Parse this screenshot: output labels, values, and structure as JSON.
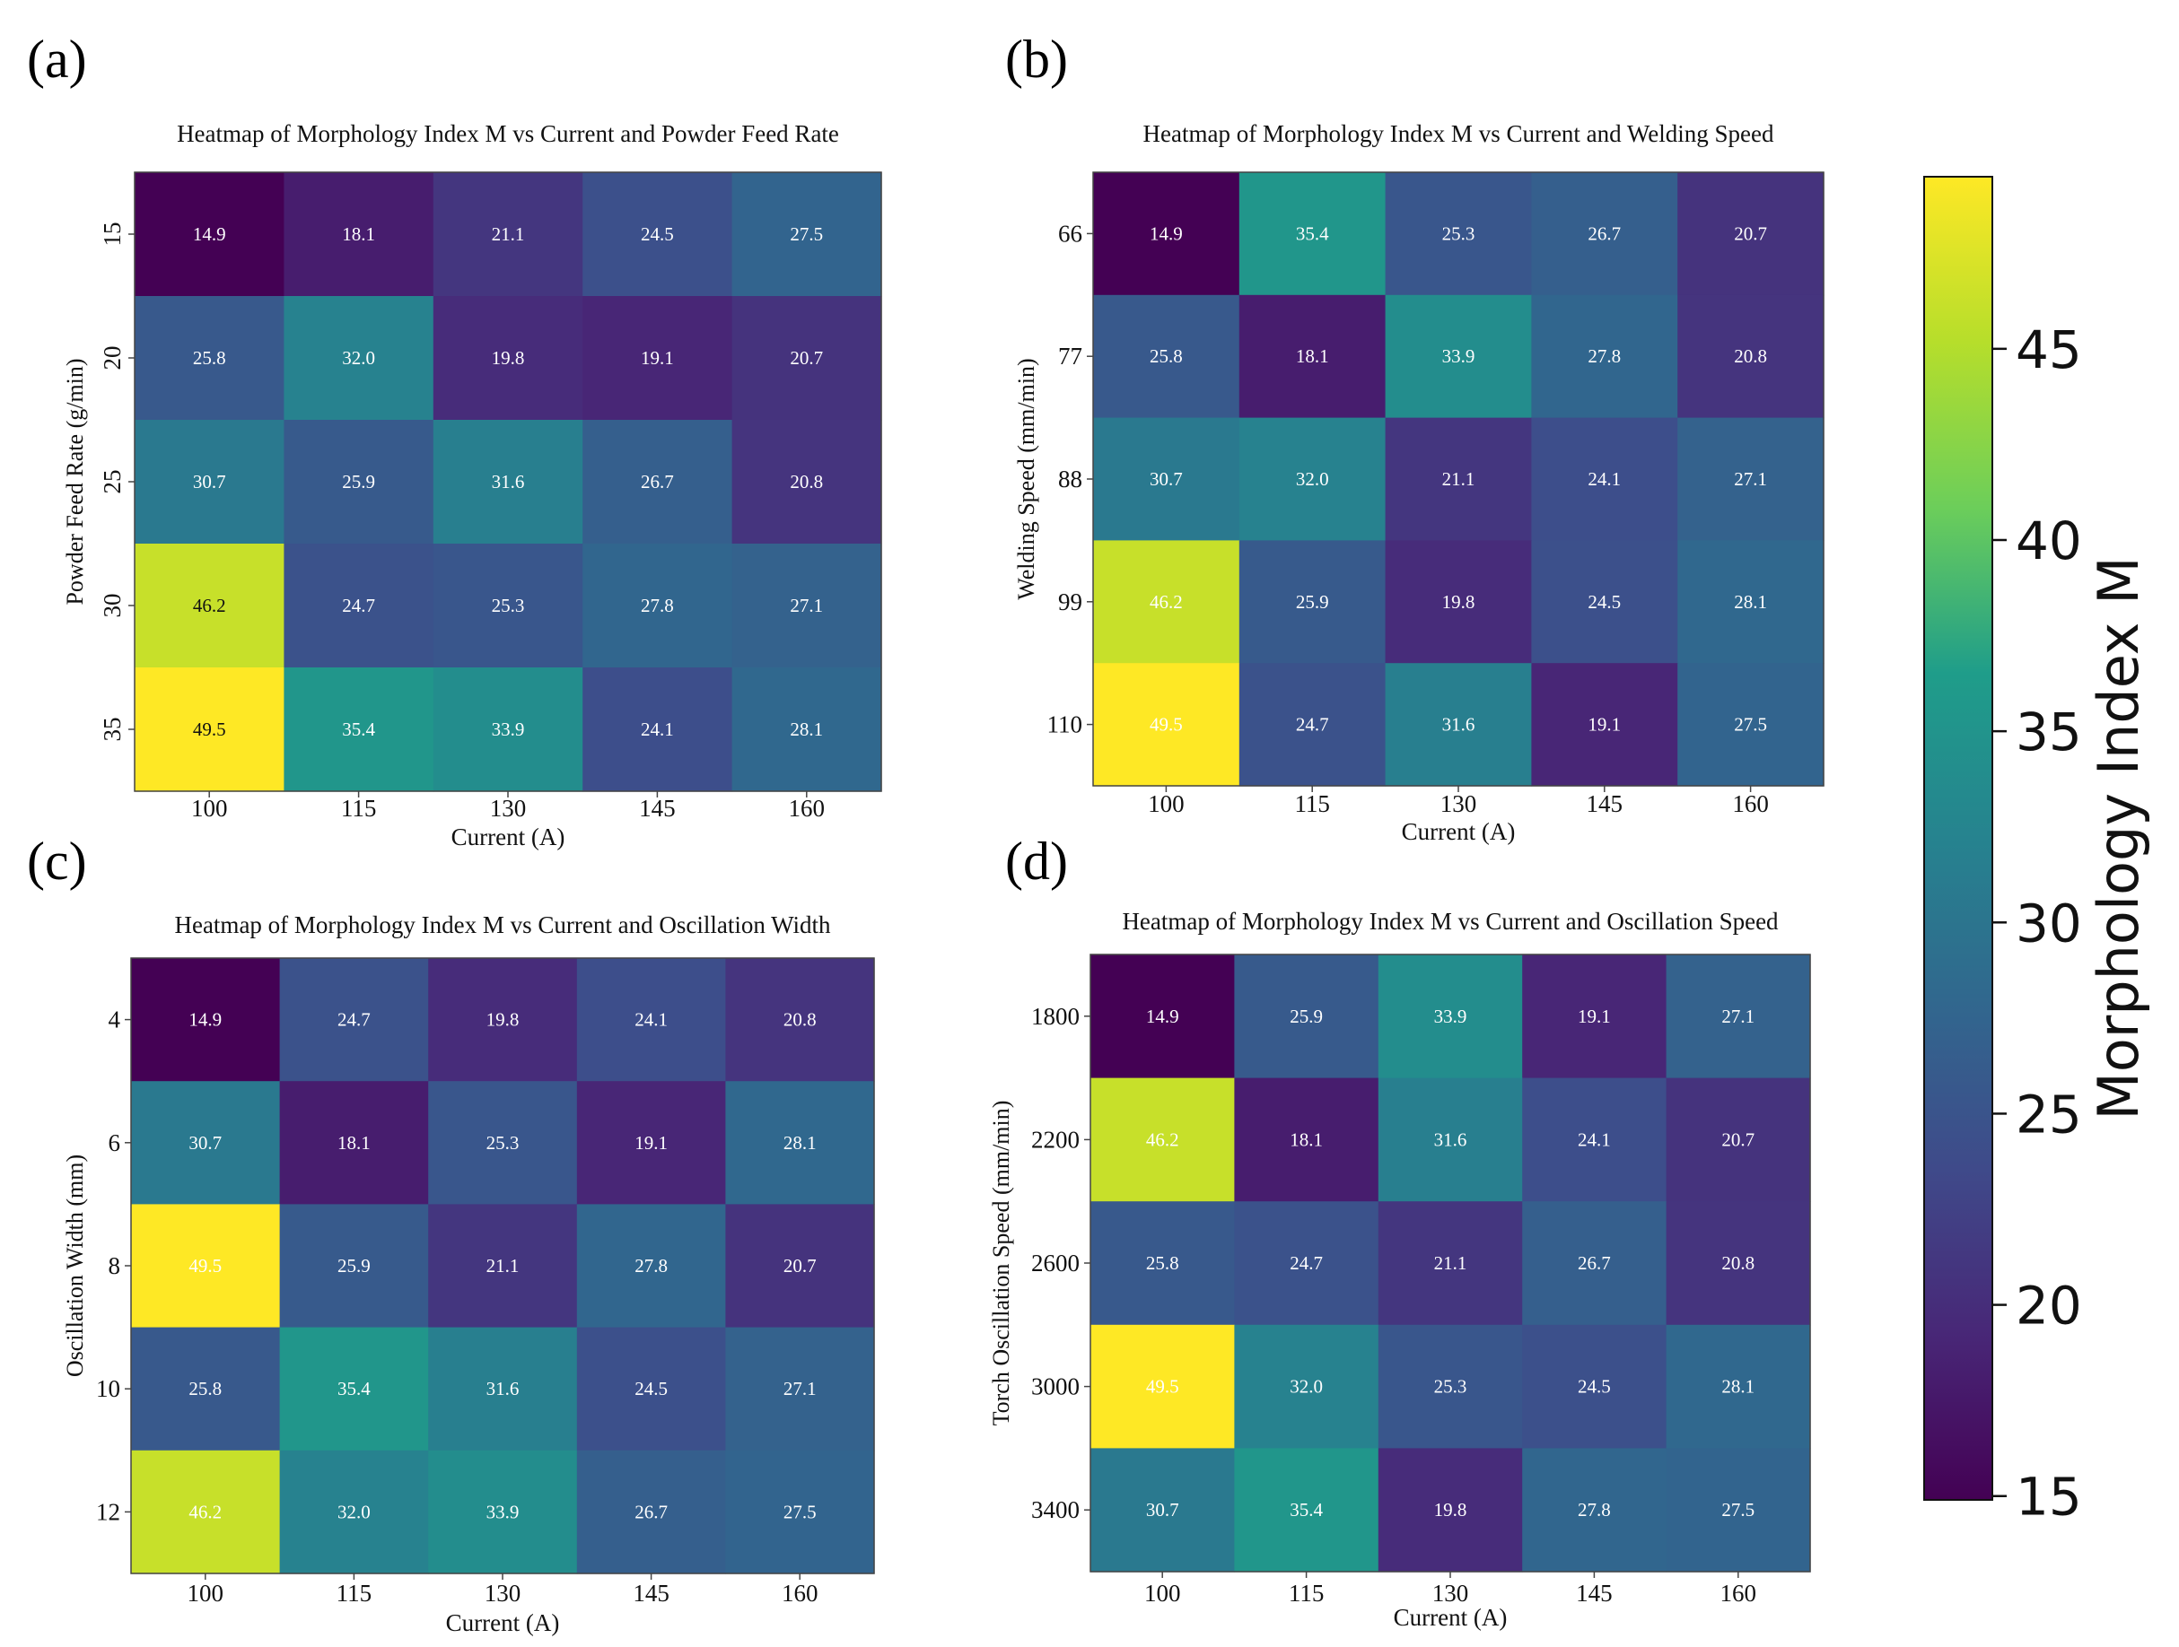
{
  "chart_data": [
    {
      "type": "heatmap",
      "panel_label": "(a)",
      "title": "Heatmap of Morphology Index M vs Current and Powder Feed Rate",
      "xlabel": "Current (A)",
      "ylabel": "Powder Feed Rate (g/min)",
      "x_ticks": [
        "100",
        "115",
        "130",
        "145",
        "160"
      ],
      "y_ticks": [
        "15",
        "20",
        "25",
        "30",
        "35"
      ],
      "y_tick_rotated": true,
      "values": [
        [
          14.9,
          18.1,
          21.1,
          24.5,
          27.5
        ],
        [
          25.8,
          32.0,
          19.8,
          19.1,
          20.7
        ],
        [
          30.7,
          25.9,
          31.6,
          26.7,
          20.8
        ],
        [
          46.2,
          24.7,
          25.3,
          27.8,
          27.1
        ],
        [
          49.5,
          35.4,
          33.9,
          24.1,
          28.1
        ]
      ]
    },
    {
      "type": "heatmap",
      "panel_label": "(b)",
      "title": "Heatmap of Morphology Index M vs Current and Welding Speed",
      "xlabel": "Current (A)",
      "ylabel": "Welding Speed (mm/min)",
      "x_ticks": [
        "100",
        "115",
        "130",
        "145",
        "160"
      ],
      "y_ticks": [
        "66",
        "77",
        "88",
        "99",
        "110"
      ],
      "y_tick_rotated": false,
      "values": [
        [
          14.9,
          35.4,
          25.3,
          26.7,
          20.7
        ],
        [
          25.8,
          18.1,
          33.9,
          27.8,
          20.8
        ],
        [
          30.7,
          32.0,
          21.1,
          24.1,
          27.1
        ],
        [
          46.2,
          25.9,
          19.8,
          24.5,
          28.1
        ],
        [
          49.5,
          24.7,
          31.6,
          19.1,
          27.5
        ]
      ]
    },
    {
      "type": "heatmap",
      "panel_label": "(c)",
      "title": "Heatmap of Morphology Index M vs Current and Oscillation Width",
      "xlabel": "Current (A)",
      "ylabel": "Oscillation Width (mm)",
      "x_ticks": [
        "100",
        "115",
        "130",
        "145",
        "160"
      ],
      "y_ticks": [
        "4",
        "6",
        "8",
        "10",
        "12"
      ],
      "y_tick_rotated": false,
      "values": [
        [
          14.9,
          24.7,
          19.8,
          24.1,
          20.8
        ],
        [
          30.7,
          18.1,
          25.3,
          19.1,
          28.1
        ],
        [
          49.5,
          25.9,
          21.1,
          27.8,
          20.7
        ],
        [
          25.8,
          35.4,
          31.6,
          24.5,
          27.1
        ],
        [
          46.2,
          32.0,
          33.9,
          26.7,
          27.5
        ]
      ]
    },
    {
      "type": "heatmap",
      "panel_label": "(d)",
      "title": "Heatmap of Morphology Index M vs Current and Oscillation Speed",
      "xlabel": "Current (A)",
      "ylabel": "Torch Oscillation Speed (mm/min)",
      "x_ticks": [
        "100",
        "115",
        "130",
        "145",
        "160"
      ],
      "y_ticks": [
        "1800",
        "2200",
        "2600",
        "3000",
        "3400"
      ],
      "y_tick_rotated": false,
      "values": [
        [
          14.9,
          25.9,
          33.9,
          19.1,
          27.1
        ],
        [
          46.2,
          18.1,
          31.6,
          24.1,
          20.7
        ],
        [
          25.8,
          24.7,
          21.1,
          26.7,
          20.8
        ],
        [
          49.5,
          32.0,
          25.3,
          24.5,
          28.1
        ],
        [
          30.7,
          35.4,
          19.8,
          27.8,
          27.5
        ]
      ]
    }
  ],
  "colorbar": {
    "label": "Morphology Index M",
    "range": [
      14.9,
      49.5
    ],
    "ticks": [
      "15",
      "20",
      "25",
      "30",
      "35",
      "40",
      "45"
    ],
    "tick_values": [
      15,
      20,
      25,
      30,
      35,
      40,
      45
    ],
    "colormap": "viridis",
    "colormap_stops": [
      "#440154",
      "#482777",
      "#3f4a8a",
      "#31678e",
      "#26838f",
      "#1f9d8a",
      "#6cce5a",
      "#b6de2b",
      "#fee825"
    ]
  }
}
